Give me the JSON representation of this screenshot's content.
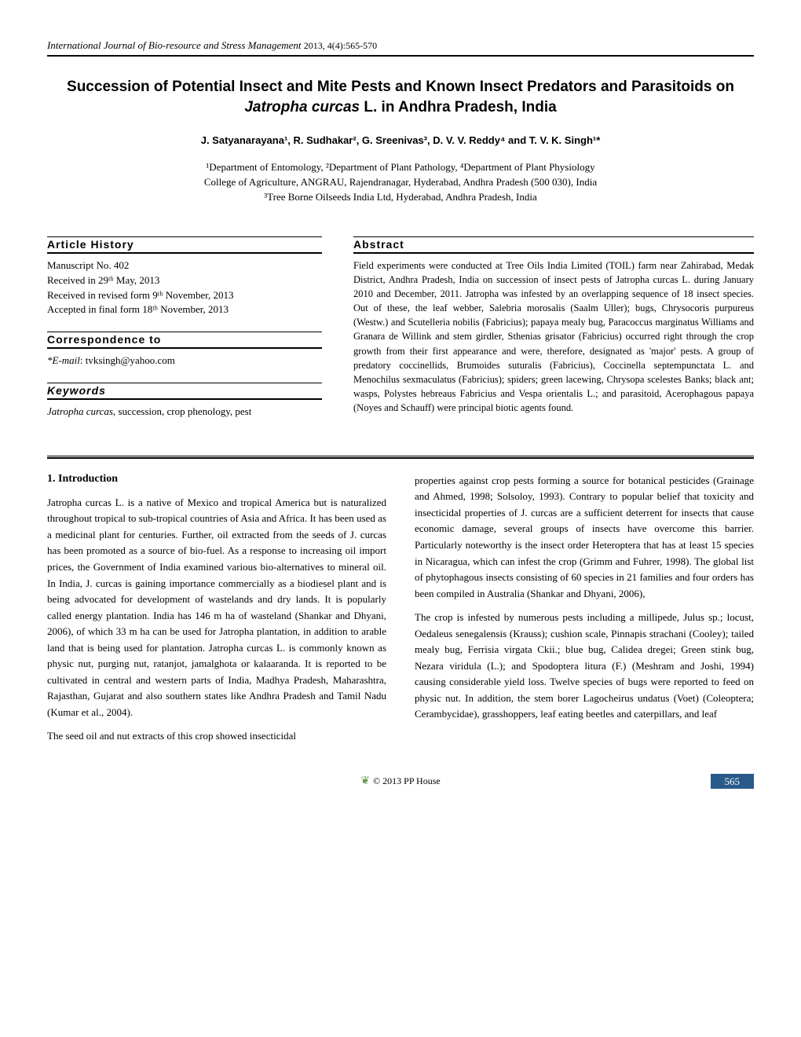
{
  "journal": {
    "name": "International Journal of Bio-resource and Stress Management",
    "year_vol": "2013,  4(4):565-570"
  },
  "title": {
    "line1": "Succession of Potential Insect and Mite Pests and Known Insect Predators and Parasitoids on",
    "line2_italic": "Jatropha curcas",
    "line2_rest": " L. in Andhra Pradesh, India"
  },
  "authors": "J. Satyanarayana¹, R. Sudhakar², G. Sreenivas³, D. V. V. Reddy⁴ and T. V. K. Singh¹*",
  "affiliations": {
    "line1": "¹Department of Entomology, ²Department of Plant Pathology, ⁴Department of Plant Physiology",
    "line2": "College of Agriculture, ANGRAU, Rajendranagar, Hyderabad, Andhra Pradesh (500 030), India",
    "line3": "³Tree Borne Oilseeds India Ltd, Hyderabad, Andhra Pradesh, India"
  },
  "article_history": {
    "heading": "Article History",
    "lines": {
      "l1": "Manuscript No. 402",
      "l2": "Received in 29ᵗʰ May, 2013",
      "l3": "Received in revised form 9ᵗʰ November, 2013",
      "l4": "Accepted in final form 18ᵗʰ November, 2013"
    }
  },
  "correspondence": {
    "heading": "Correspondence to",
    "email_label": "*E-mail",
    "email": ": tvksingh@yahoo.com"
  },
  "keywords": {
    "heading": "Keywords",
    "italic": "Jatropha curcas",
    "rest": ", succession, crop phenology, pest"
  },
  "abstract": {
    "heading": "Abstract",
    "text": "Field experiments were conducted at Tree Oils India Limited (TOIL) farm near Zahirabad, Medak District, Andhra Pradesh, India on succession of insect pests of Jatropha curcas L. during January 2010 and December, 2011. Jatropha was infested by an overlapping sequence of 18 insect species. Out of these, the leaf webber, Salebria morosalis (Saalm Uller); bugs, Chrysocoris purpureus (Westw.) and Scutelleria nobilis (Fabricius); papaya mealy bug, Paracoccus marginatus Williams and Granara de Willink and stem girdler, Sthenias grisator (Fabricius) occurred right through the crop growth from their first appearance and were, therefore, designated as 'major' pests. A group of predatory coccinellids, Brumoides suturalis (Fabricius), Coccinella septempunctata L. and Menochilus sexmaculatus (Fabricius); spiders; green lacewing, Chrysopa scelestes Banks; black ant; wasps, Polystes hebreaus Fabricius and Vespa orientalis L.; and parasitoid, Acerophagous papaya (Noyes and Schauff) were principal biotic agents found."
  },
  "body": {
    "intro_heading": "1.  Introduction",
    "col1": {
      "p1": "Jatropha curcas L. is a native of Mexico and tropical America but is naturalized throughout tropical to sub-tropical countries of Asia and Africa. It has been used as a medicinal plant for centuries. Further, oil extracted from the seeds of J. curcas has been promoted as a source of bio-fuel. As a response to increasing oil import prices, the Government of India examined various bio-alternatives to mineral oil. In India, J. curcas is gaining importance commercially as a biodiesel plant and is being advocated for development of wastelands and dry lands. It is popularly called energy plantation. India has 146 m ha of wasteland (Shankar and Dhyani, 2006), of which 33 m ha can be used for Jatropha plantation, in addition to arable land that is being used for plantation. Jatropha curcas L. is commonly known as physic nut, purging nut, ratanjot, jamalghota or kalaaranda. It is reported to be cultivated in central and western parts of India, Madhya Pradesh, Maharashtra, Rajasthan, Gujarat and also southern states like Andhra Pradesh and Tamil Nadu (Kumar et al., 2004).",
      "p2": "The seed oil and nut extracts of this crop showed insecticidal"
    },
    "col2": {
      "p1": "properties against crop pests forming a source for botanical pesticides (Grainage and Ahmed, 1998; Solsoloy, 1993). Contrary to popular belief that toxicity and insecticidal properties of J. curcas are a sufficient deterrent for insects that cause economic damage, several groups of insects have overcome this barrier. Particularly noteworthy is the insect order Heteroptera that has at least 15 species in Nicaragua, which can infest the crop (Grimm and Fuhrer, 1998). The global list of phytophagous insects consisting of 60 species in 21 families and four orders has been compiled in Australia (Shankar and Dhyani, 2006),",
      "p2": "The crop is  infested  by numerous pests including a millipede, Julus sp.; locust, Oedaleus senegalensis (Krauss); cushion scale, Pinnapis strachani  (Cooley); tailed mealy bug, Ferrisia virgata Ckii.; blue bug, Calidea dregei; Green stink bug, Nezara viridula (L.); and Spodoptera litura (F.) (Meshram and Joshi, 1994) causing considerable yield loss.  Twelve species of bugs were reported to feed on physic nut.  In addition, the stem borer Lagocheirus undatus (Voet) (Coleoptera; Cerambycidae), grasshoppers, leaf eating beetles and caterpillars, and leaf"
    }
  },
  "footer": {
    "copyright": "© 2013 PP House",
    "page": "565"
  },
  "colors": {
    "page_num_bg": "#2a5a8a",
    "leaf": "#6a9a4a"
  }
}
